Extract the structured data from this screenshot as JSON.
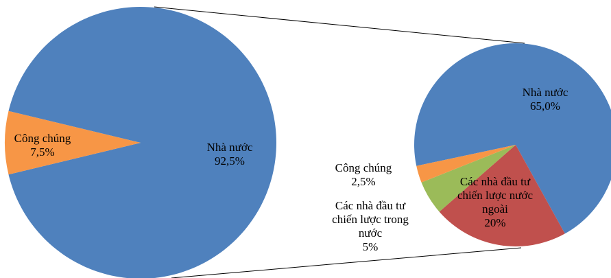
{
  "chart_data": [
    {
      "type": "pie",
      "categories": [
        "Nhà nước",
        "Công chúng"
      ],
      "values": [
        92.5,
        7.5
      ],
      "value_labels": [
        "92,5%",
        "7,5%"
      ],
      "colors": [
        "#4f81bd",
        "#f79646"
      ]
    },
    {
      "type": "pie",
      "categories": [
        "Nhà nước",
        "Các nhà đầu tư chiến lược nước ngoài",
        "Các nhà đầu tư chiến lược trong nước",
        "Công chúng"
      ],
      "values": [
        65.0,
        20,
        5,
        2.5
      ],
      "value_labels": [
        "65,0%",
        "20%",
        "5%",
        "2,5%"
      ],
      "colors": [
        "#4f81bd",
        "#c0504d",
        "#9bbb59",
        "#f79646"
      ]
    }
  ]
}
